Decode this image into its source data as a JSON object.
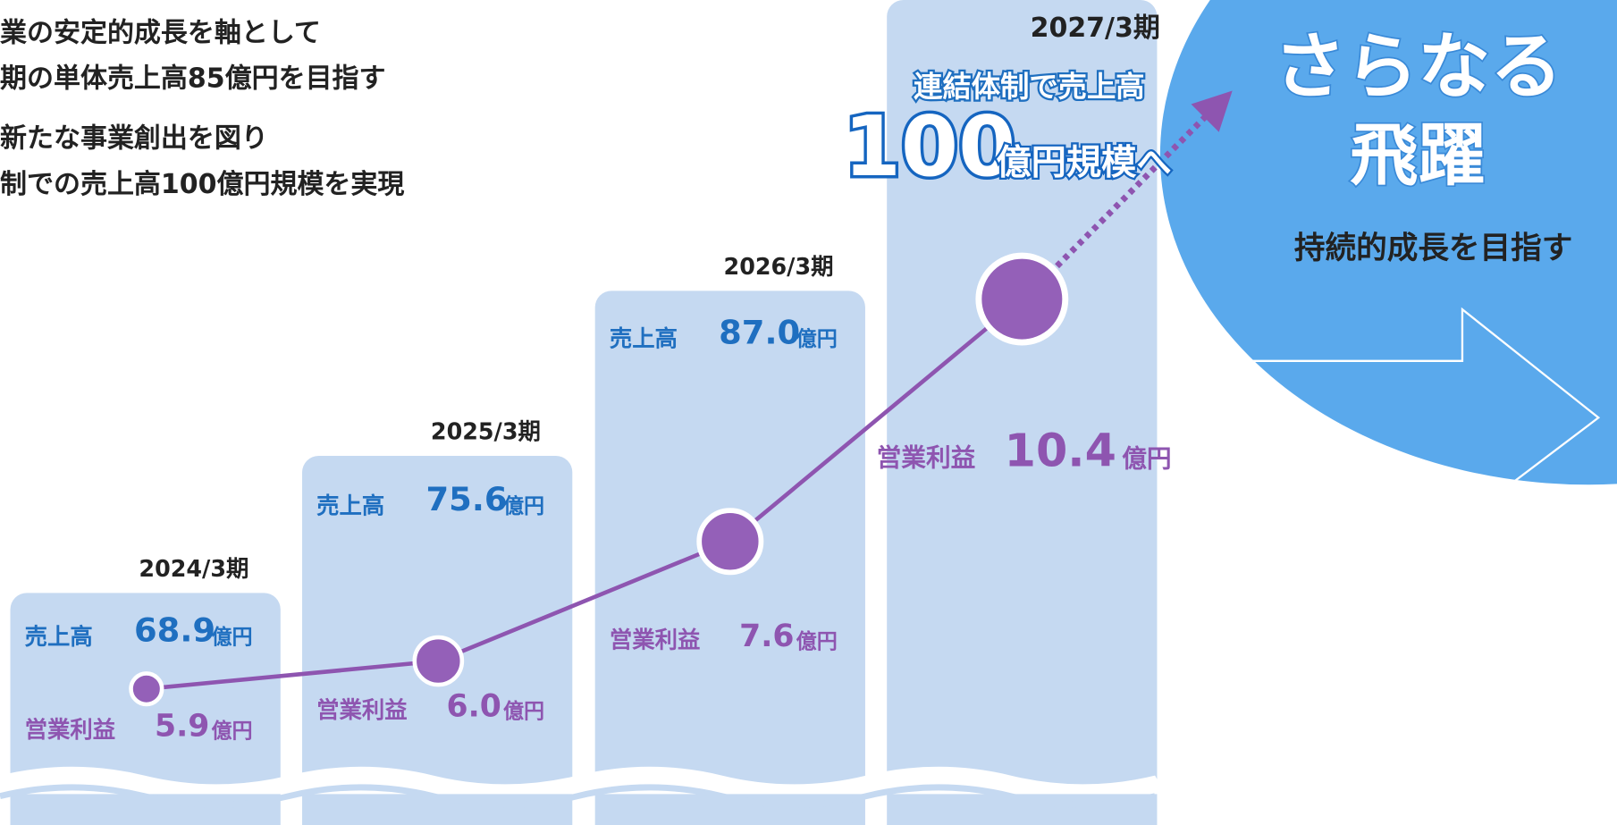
{
  "intro": {
    "lines": [
      "業の安定的成長を軸として",
      "期の単体売上高85億円を目指す",
      "新たな事業創出を図り",
      "制での売上高100億円規模を実現"
    ]
  },
  "periods": [
    {
      "label": "2024/3期",
      "sales_label": "売上高",
      "sales": "68.9",
      "sales_unit": "億円",
      "profit_label": "営業利益",
      "profit": "5.9",
      "profit_unit": "億円"
    },
    {
      "label": "2025/3期",
      "sales_label": "売上高",
      "sales": "75.6",
      "sales_unit": "億円",
      "profit_label": "営業利益",
      "profit": "6.0",
      "profit_unit": "億円"
    },
    {
      "label": "2026/3期",
      "sales_label": "売上高",
      "sales": "87.0",
      "sales_unit": "億円",
      "profit_label": "営業利益",
      "profit": "7.6",
      "profit_unit": "億円"
    }
  ],
  "target": {
    "label": "2027/3期",
    "headline": "連結体制で売上高",
    "big_number": "100",
    "big_unit": "億円規模へ",
    "profit_label": "営業利益",
    "profit": "10.4",
    "profit_unit": "億円"
  },
  "future": {
    "title_1": "さらなる",
    "title_2": "飛躍",
    "subtitle": "持続的成長を目指す"
  }
}
